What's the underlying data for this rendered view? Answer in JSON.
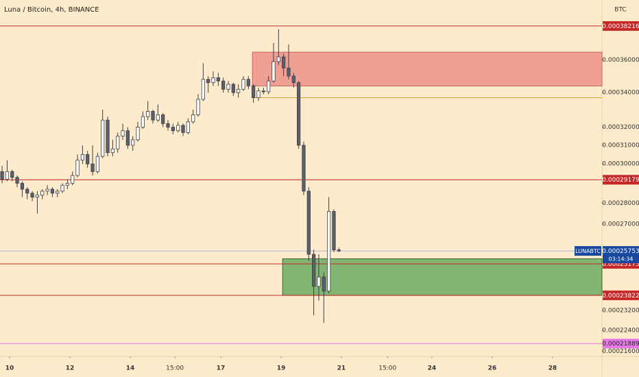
{
  "chart_data": {
    "type": "candlestick",
    "title": "Luna / Bitcoin, 4h, BINANCE",
    "currency": "BTC",
    "symbol": "LUNABTC",
    "countdown": "03:14:34",
    "log_scale": true,
    "xlim": [
      9.68,
      29.64
    ],
    "ylim": [
      0.000214,
      0.0004
    ],
    "xticks": [
      10,
      12,
      14,
      {
        "value": 15.48,
        "label": "15:00"
      },
      17,
      19,
      21,
      {
        "value": 22.53,
        "label": "15:00"
      },
      24,
      26,
      28
    ],
    "yticks": [
      {
        "value": 0.00036,
        "label": "0.00036000"
      },
      {
        "value": 0.00034,
        "label": "0.00034000"
      },
      {
        "value": 0.00032,
        "label": "0.00032000"
      },
      {
        "value": 0.00031,
        "label": "0.00031000"
      },
      {
        "value": 0.0003,
        "label": "0.00030000"
      },
      {
        "value": 0.00028,
        "label": "0.00028000"
      },
      {
        "value": 0.00027,
        "label": "0.00027000"
      },
      {
        "value": 0.000232,
        "label": "0.00023200"
      },
      {
        "value": 0.000224,
        "label": "0.00022400"
      },
      {
        "value": 0.000216,
        "label": "0.00021600"
      }
    ],
    "up_color": "#ffffff",
    "down_color": "#5d606b",
    "x": [
      9.75,
      9.917,
      10.083,
      10.25,
      10.417,
      10.583,
      10.75,
      10.917,
      11.083,
      11.25,
      11.417,
      11.583,
      11.75,
      11.917,
      12.083,
      12.25,
      12.417,
      12.583,
      12.75,
      12.917,
      13.083,
      13.25,
      13.417,
      13.583,
      13.75,
      13.917,
      14.083,
      14.25,
      14.417,
      14.583,
      14.75,
      14.917,
      15.083,
      15.25,
      15.417,
      15.583,
      15.75,
      15.917,
      16.083,
      16.25,
      16.417,
      16.583,
      16.75,
      16.917,
      17.083,
      17.25,
      17.417,
      17.583,
      17.75,
      17.917,
      18.083,
      18.25,
      18.417,
      18.583,
      18.75,
      18.917,
      19.083,
      19.25,
      19.417,
      19.583,
      19.75,
      19.917,
      20.083,
      20.25,
      20.417,
      20.583,
      20.75,
      20.917
    ],
    "open": [
      0.000296,
      0.000292,
      0.000296,
      0.000293,
      0.00029,
      0.000287,
      0.000285,
      0.000283,
      0.000284,
      0.000286,
      0.000287,
      0.000285,
      0.000286,
      0.000289,
      0.00029,
      0.000294,
      0.000302,
      0.000305,
      0.0003,
      0.000296,
      0.000304,
      0.000324,
      0.000306,
      0.000308,
      0.000315,
      0.000318,
      0.00031,
      0.000313,
      0.00032,
      0.000326,
      0.000329,
      0.000324,
      0.000327,
      0.000322,
      0.00032,
      0.000318,
      0.000321,
      0.000317,
      0.000323,
      0.000327,
      0.000336,
      0.000348,
      0.000346,
      0.000349,
      0.000347,
      0.000342,
      0.000345,
      0.00034,
      0.000342,
      0.000348,
      0.000344,
      0.000337,
      0.000341,
      0.0003405,
      0.000347,
      0.000359,
      0.000362,
      0.000355,
      0.00035,
      0.000346,
      0.00031,
      0.000286,
      0.000256,
      0.000242,
      0.000246,
      0.00024,
      0.000276,
      0.000258
    ],
    "high": [
      0.000299,
      0.000302,
      0.000297,
      0.000294,
      0.000291,
      0.000288,
      0.000286,
      0.000286,
      0.000287,
      0.000289,
      0.000288,
      0.000287,
      0.00029,
      0.000292,
      0.000296,
      0.000305,
      0.00031,
      0.000307,
      0.00031,
      0.000306,
      0.00033,
      0.000326,
      0.000313,
      0.000317,
      0.000322,
      0.00032,
      0.000315,
      0.000323,
      0.000329,
      0.000335,
      0.00033,
      0.000333,
      0.000328,
      0.000324,
      0.000322,
      0.000323,
      0.000322,
      0.000325,
      0.00033,
      0.000339,
      0.000358,
      0.00035,
      0.000353,
      0.000352,
      0.000349,
      0.000347,
      0.000346,
      0.000345,
      0.00035,
      0.00035,
      0.000345,
      0.000343,
      0.000343,
      0.00035,
      0.000371,
      0.00038,
      0.000364,
      0.00037,
      0.000352,
      0.000347,
      0.000312,
      0.000288,
      0.000258,
      0.000256,
      0.000248,
      0.000283,
      0.000277,
      0.000259
    ],
    "low": [
      0.00029,
      0.000291,
      0.000291,
      0.000288,
      0.000283,
      0.000282,
      0.000281,
      0.000275,
      0.000282,
      0.000284,
      0.000283,
      0.000283,
      0.000285,
      0.000287,
      0.000289,
      0.000293,
      0.0003,
      0.000298,
      0.000294,
      0.000295,
      0.000303,
      0.000304,
      0.000304,
      0.000306,
      0.000313,
      0.000308,
      0.000307,
      0.000312,
      0.000319,
      0.000324,
      0.000322,
      0.000323,
      0.00032,
      0.000318,
      0.000316,
      0.000317,
      0.000315,
      0.000316,
      0.000322,
      0.000326,
      0.000335,
      0.00034,
      0.000344,
      0.000344,
      0.00034,
      0.00034,
      0.000338,
      0.000337,
      0.000341,
      0.000342,
      0.000334,
      0.000335,
      0.000339,
      0.000339,
      0.000346,
      0.000357,
      0.00035,
      0.000348,
      0.000343,
      0.000308,
      0.000284,
      0.000253,
      0.00023,
      0.000236,
      0.000227,
      0.000239,
      0.000257,
      0.000257
    ],
    "close": [
      0.000292,
      0.000296,
      0.000293,
      0.00029,
      0.000287,
      0.000285,
      0.000283,
      0.000284,
      0.000286,
      0.000287,
      0.000285,
      0.000286,
      0.000289,
      0.00029,
      0.000294,
      0.000302,
      0.000305,
      0.0003,
      0.000296,
      0.000304,
      0.000324,
      0.000306,
      0.000308,
      0.000315,
      0.000318,
      0.00031,
      0.000313,
      0.00032,
      0.000326,
      0.000329,
      0.000324,
      0.000327,
      0.000322,
      0.00032,
      0.000318,
      0.000321,
      0.000317,
      0.000323,
      0.000327,
      0.000336,
      0.000348,
      0.000346,
      0.000349,
      0.000347,
      0.000342,
      0.000345,
      0.00034,
      0.000342,
      0.000348,
      0.000344,
      0.000337,
      0.000341,
      0.0003405,
      0.000347,
      0.000359,
      0.000362,
      0.000355,
      0.00035,
      0.000346,
      0.00031,
      0.000286,
      0.000256,
      0.000242,
      0.000246,
      0.00024,
      0.000276,
      0.000258,
      0.00025753
    ],
    "last_price_color": "#1848a0",
    "last_line_color": "#a9b9d6",
    "levels": [
      {
        "value": 0.00038216,
        "color": "#c62828",
        "tag": true
      },
      {
        "value": 0.00029179,
        "color": "#c62828",
        "tag": true
      },
      {
        "value": 0.00025175,
        "color": "#c62828",
        "tag": true
      },
      {
        "value": 0.00023822,
        "color": "#c62828",
        "tag": true
      },
      {
        "value": 0.00021889,
        "color": "#e47ae6",
        "tag": true
      },
      {
        "value": 0.000337,
        "color": "#f0a030",
        "tag": false,
        "x0": 18.05
      }
    ],
    "zones": [
      {
        "x0": 18.05,
        "top": 0.000365,
        "bottom": 0.000344,
        "color": "#f0a092",
        "border": "#c86060"
      },
      {
        "x0": 19.05,
        "top": 0.000254,
        "bottom": 0.00023822,
        "color": "#82b572",
        "border": "#2f6b2f"
      }
    ]
  }
}
